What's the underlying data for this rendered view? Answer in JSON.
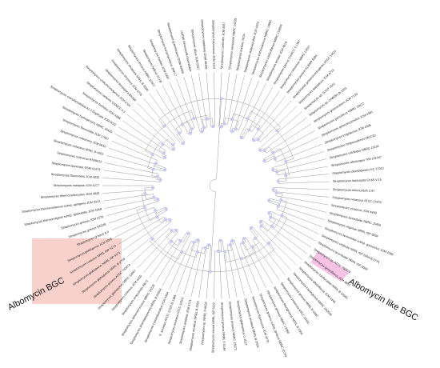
{
  "colors": {
    "albomycin_highlight": "#f8d0cc",
    "albomycin_like_highlight": "#f7c3e4",
    "node_marker": "#c9c9f0",
    "branch": "#9a9a9a",
    "highlighted_label": "#d46a6a"
  },
  "annotations": {
    "albomycin_bgc": "Albomycin BGC",
    "albomycin_like_bgc": "Albomycin like BGC"
  },
  "tree": {
    "leaves": [
      {
        "label": "Streptomyces tirtinnuotum 2.97"
      },
      {
        "label": "Streptomyces vinaceus ATCC 27476"
      },
      {
        "label": "Streptomyces vinaceus JCM 4849"
      },
      {
        "label": "Streptomyces lavendulae NBRC 15456"
      },
      {
        "label": "Streptomyces virginiae NRRL ISP 5094"
      },
      {
        "label": "Streptomyces lavendulae subsp. grasserius JCM 4056"
      },
      {
        "label": "Streptomyces virginiae NRRL ISP 5094 B-2774"
      },
      {
        "label": "Streptomyces lavendulae NRRL ISP 5069"
      },
      {
        "label": "Streptomyces sp. ATCC 700974",
        "highlight": "albomycin-like"
      },
      {
        "label": "Streptomyces griseoflavus JCM 4807"
      },
      {
        "label": "Streptomyces luridiscabiei NRRL B-24581"
      },
      {
        "label": "Streptomyces albidoflavus JCM 4446"
      },
      {
        "label": "Streptomyces koyangensis NBRC 100598"
      },
      {
        "label": "Streptomyces griseus NRRL B-2682"
      },
      {
        "label": "Streptomyces pratensis ATCC 33331"
      },
      {
        "label": "Streptomyces flavogriseus NRRL B-2306"
      },
      {
        "label": "Streptomyces griseus NBRC 13350"
      },
      {
        "label": "Streptomyces griseus subsp. griseus NBRC 15744"
      },
      {
        "label": "Streptomyces flavescens JCM 4079"
      },
      {
        "label": "Streptomyces anulatus NRRL B-2000"
      },
      {
        "label": "Streptomyces globisporus C-1027"
      },
      {
        "label": "Streptomyces praecox NBRC 13073"
      },
      {
        "label": "Streptomyces griseus NRRL F-5144"
      },
      {
        "label": "Streptomyces setonii NRRL ISP 5322"
      },
      {
        "label": "Streptomyces sp. NRRL F-6628"
      },
      {
        "label": "Streptomyces anulatus NRRL B-3362"
      },
      {
        "label": "Streptomyces anulatus JCM 4721"
      },
      {
        "label": "Streptomyces anulatus ATCC 11523"
      },
      {
        "label": "S. anulatus ATCC 11523 B-1368"
      },
      {
        "label": "Streptomyces cyaneofuscatus JCM 4364"
      },
      {
        "label": "Streptomyces pharmamarensis NRRL B-24544"
      },
      {
        "label": "Streptomyces spinoverrucosus NBRC 14228"
      },
      {
        "label": "Streptomyces scopuliridis RB72"
      },
      {
        "label": "Streptomyces cinereus JCM 4205"
      },
      {
        "label": "Streptomyces globisporus NBRC 12867",
        "highlight": "albomycin"
      },
      {
        "label": "Streptomyces griseus ATCC 700974",
        "highlight": "albomycin"
      },
      {
        "label": "Streptomyces globisporus NRRL B-2709",
        "highlight": "albomycin"
      },
      {
        "label": "Streptomyces globisporus NRRL ISP 5171",
        "highlight": "albomycin"
      },
      {
        "label": "Streptomyces roseolus NRRL ISP 5174",
        "highlight": "albomycin"
      },
      {
        "label": "Streptomyces globisporus JCM 4045",
        "highlight": "albomycin"
      },
      {
        "label": "Streptomyces griseus A.9",
        "highlight": "albomycin"
      },
      {
        "label": "Streptomyces griseus NA239",
        "highlight": "albomycin"
      },
      {
        "label": "Streptomyces griseus JCM 4376",
        "highlight": "albomycin"
      },
      {
        "label": "Streptomyces thermovulgaris subsp. spectabilis JCM 4308"
      },
      {
        "label": "Streptomyces thermoviolaceus subsp. apingens JCM 4313"
      },
      {
        "label": "Streptomyces thermocarboxydus JCM 4843"
      },
      {
        "label": "Streptomyces malaysis JCM 4277"
      },
      {
        "label": "Streptomyces flavovirens JCM 4032"
      },
      {
        "label": "Streptomyces lannensis DSM 41479"
      },
      {
        "label": "Streptomyces sclimarus RS09011"
      },
      {
        "label": "Streptomyces violaceus NRRL B-1061"
      },
      {
        "label": "Streptomyces violascens JCM 6610"
      },
      {
        "label": "Streptomyces flavoviridis JCM 17657"
      },
      {
        "label": "Streptomyces hydrogenans NBRC 16420"
      },
      {
        "label": "Streptomyces coeruleorubidus A2.2 Duplicata JCM 5037"
      },
      {
        "label": "Streptomyces humidus JCM 4288"
      },
      {
        "label": "Streptomyces caelestis CGMCC 4.3"
      },
      {
        "label": "Streptomyces viridochromogenes JCM 4704"
      },
      {
        "label": "Streptomyces brevispora BK160"
      },
      {
        "label": "Streptomyces chryseus JCM 4776"
      },
      {
        "label": "Streptomyces olivaceus NRRL B-3009"
      },
      {
        "label": "Streptomyces rimosus NBRC 12907"
      },
      {
        "label": "Streptomyces lydicus 02 LB"
      },
      {
        "label": "Streptomyces fradiae JCM 4392"
      },
      {
        "label": "Streptomyces kanamyceticus 2NP17"
      },
      {
        "label": "Streptomyces graminearus DSM 40585"
      },
      {
        "label": "USEB5 Grisesinellu lavendulae"
      },
      {
        "label": "Streptomyces albus JCM 5027"
      },
      {
        "label": "Streptomyces natalensis DSM 40409"
      },
      {
        "label": "Streptomyces fulvissimus JCM 4110"
      },
      {
        "label": "Streptomyces coelicolor JCM 4557"
      },
      {
        "label": "Streptomyces sampsonii NBRC 14228"
      },
      {
        "label": "Streptomyces lividans TK24"
      },
      {
        "label": "Streptomyces violaceoruber JCM 4423"
      },
      {
        "label": "Streptomyces anthocyanicus NBRC 14892"
      },
      {
        "label": "Streptomyces coelicoflavus NBRC 15399T"
      },
      {
        "label": "Streptomyces tendae JCM 4610"
      },
      {
        "label": "Streptomyces parvus CGMCC 4.1367"
      },
      {
        "label": "Streptomyces cellulosae NBRC 13027"
      },
      {
        "label": "Streptomyces pactum KLBMP 5084"
      },
      {
        "label": "Streptomyces griseochromogenes ATCC 14511"
      },
      {
        "label": "Streptomyces diastaticus JCM 4713"
      },
      {
        "label": "Streptomyces sp. GJCP-1501"
      },
      {
        "label": "Streptomyces sp. CNB091 B-1501"
      },
      {
        "label": "Streptomyces griseorubens JCM 7139"
      },
      {
        "label": "Streptomyces gancidicus NBRC 15412"
      },
      {
        "label": "Streptomyces griseoincarnatus JCM 4381"
      },
      {
        "label": "Streptomyces longisporus JCM 4395"
      },
      {
        "label": "Streptomyces longwoodensis MCC20"
      },
      {
        "label": "Streptomyces exfoliatus NBRC 13191"
      },
      {
        "label": "Streptomyces albolongus YIM 101047"
      },
      {
        "label": "Streptomyces plumbidurans KC 17012"
      },
      {
        "label": "Streptomyces lasiicapitis CK65 V-15"
      }
    ]
  }
}
